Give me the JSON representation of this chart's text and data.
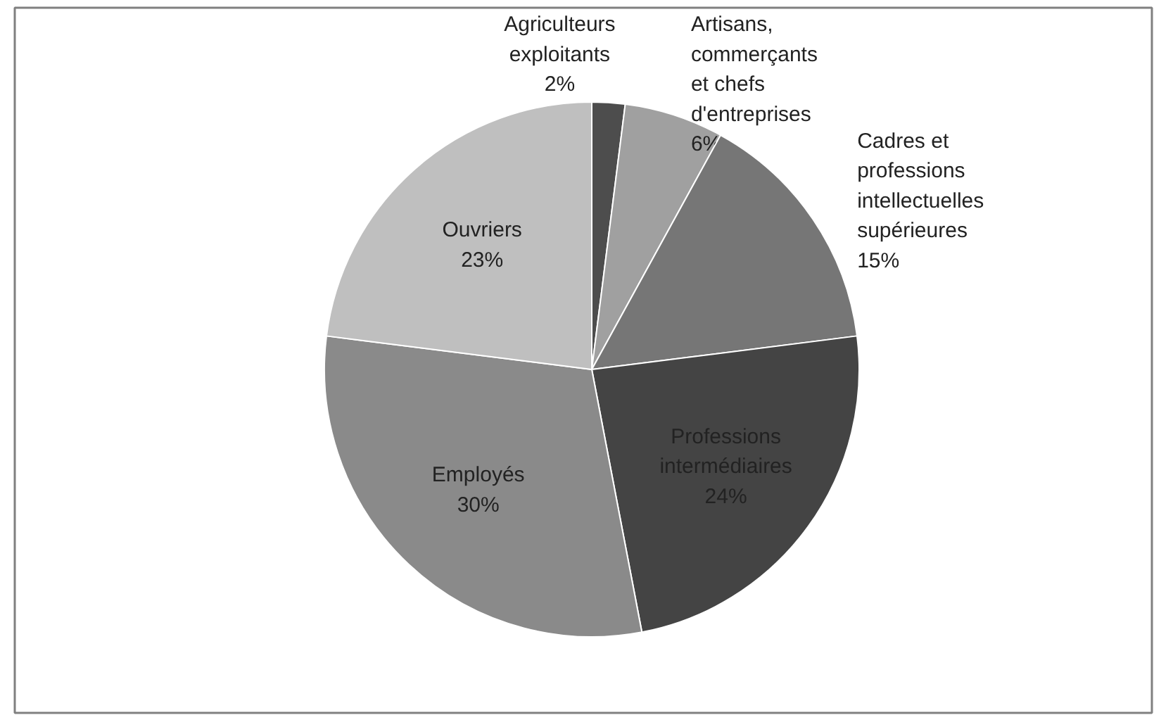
{
  "chart_data": {
    "type": "pie",
    "categories": [
      "Agriculteurs exploitants",
      "Artisans, commerçants et chefs d'entreprises",
      "Cadres et professions intellectuelles supérieures",
      "Professions intermédiaires",
      "Employés",
      "Ouvriers"
    ],
    "values": [
      2,
      6,
      15,
      24,
      30,
      23
    ],
    "value_labels": [
      "2%",
      "6%",
      "15%",
      "24%",
      "30%",
      "23%"
    ],
    "colors": [
      "#4d4d4d",
      "#a0a0a0",
      "#767676",
      "#444444",
      "#8a8a8a",
      "#bfbfbf"
    ]
  }
}
